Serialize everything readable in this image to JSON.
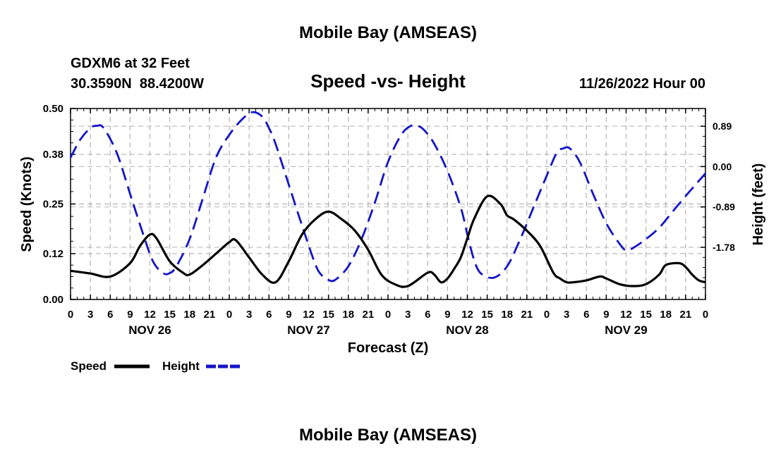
{
  "chart_data": {
    "type": "line",
    "title": "Mobile Bay (AMSEAS)",
    "subtitle": "Speed -vs- Height",
    "station": "GDXM6 at 32 Feet",
    "coordinates": "30.3590N  88.4200W",
    "timestamp": "11/26/2022 Hour 00",
    "xlabel": "Forecast (Z)",
    "ylabel_left": "Speed (Knots)",
    "ylabel_right": "Height (feet)",
    "x_range": [
      0,
      96
    ],
    "ylim_left": [
      0,
      0.5
    ],
    "ylim_right": [
      -2.93,
      1.28
    ],
    "left_ticks": [
      "0.00",
      "0.12",
      "0.25",
      "0.38",
      "0.50"
    ],
    "right_ticks": [
      "-1.78",
      "-0.89",
      "0.00",
      "0.89"
    ],
    "hour_ticks": [
      "0",
      "3",
      "6",
      "9",
      "12",
      "15",
      "18",
      "21",
      "0",
      "3",
      "6",
      "9",
      "12",
      "15",
      "18",
      "21",
      "0",
      "3",
      "6",
      "9",
      "12",
      "15",
      "18",
      "21",
      "0",
      "3",
      "6",
      "9",
      "12",
      "15",
      "18",
      "21",
      "0"
    ],
    "day_labels": [
      "NOV 26",
      "NOV 27",
      "NOV 28",
      "NOV 29"
    ],
    "legend_position": "bottom-left",
    "series": [
      {
        "name": "Speed",
        "color": "#000000",
        "style": "solid",
        "axis": "left",
        "x": [
          0,
          3,
          6,
          9,
          10.5,
          12,
          13,
          15,
          17,
          18,
          20,
          22,
          24,
          25,
          27,
          29,
          31,
          33,
          35,
          37,
          39,
          41,
          43,
          45,
          47,
          49,
          51,
          54,
          55,
          56,
          57,
          58,
          59,
          60,
          61,
          63,
          65,
          66,
          67,
          69,
          71,
          73,
          74,
          75,
          76,
          78,
          80,
          81,
          83,
          85,
          87,
          89,
          90,
          92,
          93,
          94,
          95,
          96
        ],
        "values": [
          0.075,
          0.068,
          0.06,
          0.095,
          0.14,
          0.17,
          0.16,
          0.1,
          0.07,
          0.065,
          0.09,
          0.12,
          0.15,
          0.155,
          0.11,
          0.065,
          0.045,
          0.1,
          0.17,
          0.21,
          0.23,
          0.21,
          0.18,
          0.13,
          0.065,
          0.04,
          0.035,
          0.07,
          0.065,
          0.045,
          0.055,
          0.08,
          0.11,
          0.16,
          0.21,
          0.27,
          0.25,
          0.22,
          0.21,
          0.18,
          0.14,
          0.07,
          0.055,
          0.045,
          0.045,
          0.05,
          0.06,
          0.055,
          0.04,
          0.035,
          0.04,
          0.065,
          0.09,
          0.095,
          0.085,
          0.065,
          0.05,
          0.045
        ]
      },
      {
        "name": "Height",
        "color": "#1414c8",
        "style": "dashed",
        "axis": "right",
        "x": [
          0,
          1.5,
          3,
          4,
          5,
          7,
          9,
          11,
          12.5,
          14,
          15,
          16,
          18,
          20,
          22,
          24,
          26,
          27.5,
          29,
          30,
          31,
          33,
          35,
          37,
          38,
          39,
          40,
          42,
          44,
          46,
          48,
          50,
          51.5,
          52.5,
          53.5,
          55,
          57,
          59,
          60,
          61,
          62,
          64,
          66,
          68,
          70,
          72,
          73.5,
          74.5,
          75.5,
          77,
          79,
          81,
          83,
          84,
          85,
          87,
          89,
          91,
          93,
          94.5,
          96
        ],
        "values": [
          0.2,
          0.6,
          0.85,
          0.9,
          0.85,
          0.3,
          -0.6,
          -1.5,
          -2.1,
          -2.35,
          -2.35,
          -2.2,
          -1.6,
          -0.7,
          0.2,
          0.7,
          1.05,
          1.2,
          1.1,
          0.85,
          0.5,
          -0.4,
          -1.3,
          -2.15,
          -2.4,
          -2.5,
          -2.5,
          -2.2,
          -1.6,
          -0.8,
          0.1,
          0.7,
          0.9,
          0.9,
          0.8,
          0.5,
          -0.1,
          -0.9,
          -1.5,
          -2.05,
          -2.35,
          -2.45,
          -2.2,
          -1.6,
          -0.9,
          -0.2,
          0.3,
          0.4,
          0.4,
          0.1,
          -0.6,
          -1.25,
          -1.7,
          -1.85,
          -1.8,
          -1.6,
          -1.35,
          -1.0,
          -0.65,
          -0.4,
          -0.15
        ]
      }
    ]
  },
  "footer": {
    "repeat_title": "Mobile Bay (AMSEAS)"
  }
}
